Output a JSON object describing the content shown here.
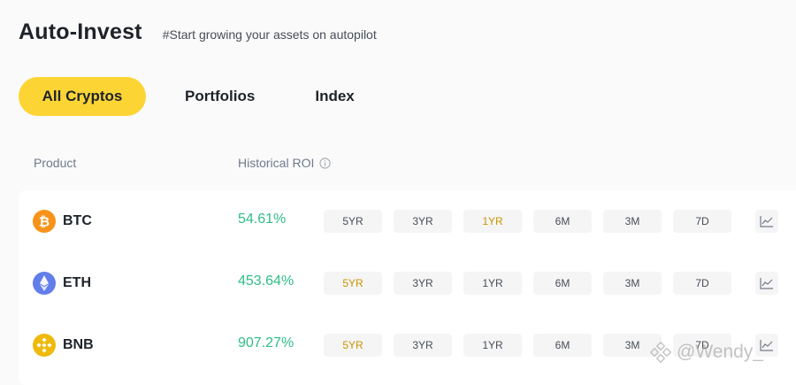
{
  "header": {
    "title": "Auto-Invest",
    "subtitle": "#Start growing your assets on autopilot"
  },
  "tabs": [
    {
      "label": "All Cryptos",
      "active": true
    },
    {
      "label": "Portfolios",
      "active": false
    },
    {
      "label": "Index",
      "active": false
    }
  ],
  "columns": {
    "product": "Product",
    "roi": "Historical ROI"
  },
  "periods": [
    "5YR",
    "3YR",
    "1YR",
    "6M",
    "3M",
    "7D"
  ],
  "rows": [
    {
      "coin": "BTC",
      "icon": "btc-icon",
      "roi": "54.61%",
      "selected_period": "1YR"
    },
    {
      "coin": "ETH",
      "icon": "eth-icon",
      "roi": "453.64%",
      "selected_period": "5YR"
    },
    {
      "coin": "BNB",
      "icon": "bnb-icon",
      "roi": "907.27%",
      "selected_period": "5YR"
    }
  ],
  "watermark": "@Wendy_",
  "colors": {
    "accent": "#fcd535",
    "positive": "#2ebd85",
    "selected_period": "#c99400",
    "btc": "#f7931a",
    "eth": "#627eea",
    "bnb": "#f0b90b"
  }
}
